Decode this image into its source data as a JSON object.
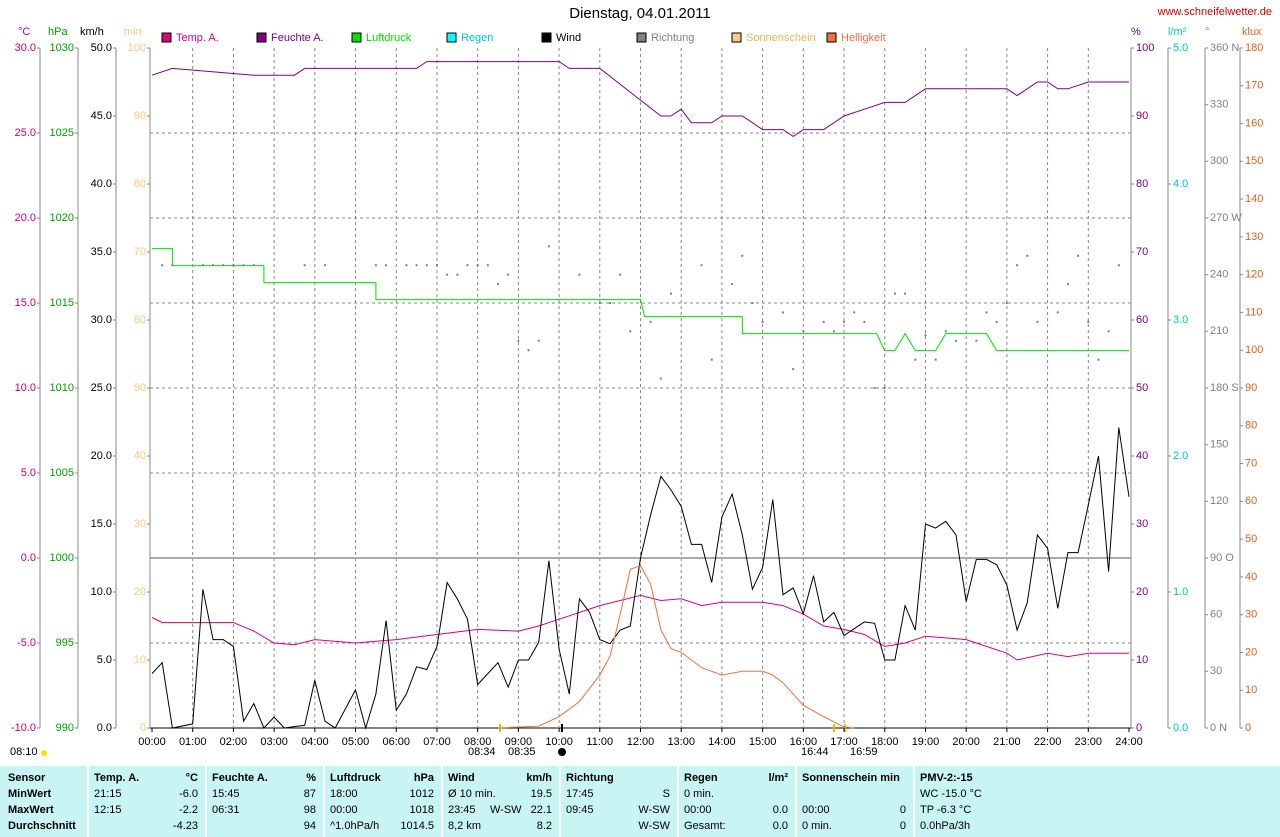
{
  "chart_data": {
    "type": "line",
    "title": "Dienstag, 04.01.2011",
    "source": "www.schneifelwetter.de",
    "xlim": [
      0,
      24
    ],
    "xticks": [
      {
        "value": 0,
        "label": "00:00"
      },
      {
        "value": 1,
        "label": "01:00"
      },
      {
        "value": 2,
        "label": "02:00"
      },
      {
        "value": 3,
        "label": "03:00"
      },
      {
        "value": 4,
        "label": "04:00"
      },
      {
        "value": 5,
        "label": "05:00"
      },
      {
        "value": 6,
        "label": "06:00"
      },
      {
        "value": 7,
        "label": "07:00"
      },
      {
        "value": 8,
        "label": "08:00"
      },
      {
        "value": 9,
        "label": "09:00"
      },
      {
        "value": 10,
        "label": "10:00"
      },
      {
        "value": 11,
        "label": "11:00"
      },
      {
        "value": 12,
        "label": "12:00"
      },
      {
        "value": 13,
        "label": "13:00"
      },
      {
        "value": 14,
        "label": "14:00"
      },
      {
        "value": 15,
        "label": "15:00"
      },
      {
        "value": 16,
        "label": "16:00"
      },
      {
        "value": 17,
        "label": "17:00"
      },
      {
        "value": 18,
        "label": "18:00"
      },
      {
        "value": 19,
        "label": "19:00"
      },
      {
        "value": 20,
        "label": "20:00"
      },
      {
        "value": 21,
        "label": "21:00"
      },
      {
        "value": 22,
        "label": "22:00"
      },
      {
        "value": 23,
        "label": "23:00"
      },
      {
        "value": 24,
        "label": "24:00"
      }
    ],
    "grid": true,
    "axes": [
      {
        "unit": "°C",
        "color": "#d0006f",
        "lim": [
          -10,
          30
        ],
        "ticks": [
          {
            "value": -10,
            "label": "-10.0"
          },
          {
            "value": -5,
            "label": "-5.0"
          },
          {
            "value": 0,
            "label": "0.0"
          },
          {
            "value": 5,
            "label": "5.0"
          },
          {
            "value": 10,
            "label": "10.0"
          },
          {
            "value": 15,
            "label": "15.0"
          },
          {
            "value": 20,
            "label": "20.0"
          },
          {
            "value": 25,
            "label": "25.0"
          },
          {
            "value": 30,
            "label": "30.0"
          }
        ]
      },
      {
        "unit": "hPa",
        "color": "#00a000",
        "lim": [
          990,
          1030
        ],
        "ticks": [
          990,
          995,
          1000,
          1005,
          1010,
          1015,
          1020,
          1025,
          1030
        ]
      },
      {
        "unit": "km/h",
        "color": "#000000",
        "lim": [
          0,
          50
        ],
        "ticks": [
          {
            "value": 0,
            "label": "0.0"
          },
          {
            "value": 5,
            "label": "5.0"
          },
          {
            "value": 10,
            "label": "10.0"
          },
          {
            "value": 15,
            "label": "15.0"
          },
          {
            "value": 20,
            "label": "20.0"
          },
          {
            "value": 25,
            "label": "25.0"
          },
          {
            "value": 30,
            "label": "30.0"
          },
          {
            "value": 35,
            "label": "35.0"
          },
          {
            "value": 40,
            "label": "40.0"
          },
          {
            "value": 45,
            "label": "45.0"
          },
          {
            "value": 50,
            "label": "50.0"
          }
        ]
      },
      {
        "unit": "min",
        "color": "#ffc880",
        "lim": [
          0,
          100
        ],
        "ticks": [
          0,
          10,
          20,
          30,
          40,
          50,
          60,
          70,
          80,
          90,
          100
        ]
      },
      {
        "unit": "%",
        "color": "#800080",
        "lim": [
          0,
          100
        ],
        "ticks": [
          0,
          10,
          20,
          30,
          40,
          50,
          60,
          70,
          80,
          90,
          100
        ]
      },
      {
        "unit": "l/m²",
        "color": "#00c8c8",
        "lim": [
          0,
          5
        ],
        "ticks": [
          {
            "value": 0,
            "label": "0.0"
          },
          {
            "value": 1,
            "label": "1.0"
          },
          {
            "value": 2,
            "label": "2.0"
          },
          {
            "value": 3,
            "label": "3.0"
          },
          {
            "value": 4,
            "label": "4.0"
          },
          {
            "value": 5,
            "label": "5.0"
          }
        ]
      },
      {
        "unit": "°",
        "color": "#808080",
        "lim": [
          0,
          360
        ],
        "ticks": [
          {
            "value": 0,
            "label": "0 N"
          },
          30,
          60,
          {
            "value": 90,
            "label": "90 O"
          },
          120,
          150,
          {
            "value": 180,
            "label": "180 S"
          },
          210,
          240,
          {
            "value": 270,
            "label": "270 W"
          },
          300,
          330,
          {
            "value": 360,
            "label": "360 N"
          }
        ]
      },
      {
        "unit": "klux",
        "color": "#e06020",
        "lim": [
          0,
          180
        ],
        "ticks": [
          0,
          10,
          20,
          30,
          40,
          50,
          60,
          70,
          80,
          90,
          100,
          110,
          120,
          130,
          140,
          150,
          160,
          170,
          180
        ]
      }
    ],
    "series": [
      {
        "name": "Temp. A.",
        "color": "#e0007a",
        "axis": 0,
        "type": "line",
        "x": [
          0,
          0.25,
          2,
          2.5,
          3,
          3.5,
          4,
          5,
          6,
          7,
          8,
          9,
          9.5,
          10,
          11,
          12,
          12.5,
          13,
          13.5,
          14,
          15,
          15.5,
          16,
          16.5,
          17,
          17.5,
          18,
          18.5,
          19,
          19.5,
          20,
          21,
          21.25,
          22,
          22.5,
          23,
          24
        ],
        "values": [
          -3.5,
          -3.8,
          -3.8,
          -4.3,
          -5.0,
          -5.1,
          -4.8,
          -5.0,
          -4.8,
          -4.5,
          -4.2,
          -4.3,
          -4.0,
          -3.6,
          -2.8,
          -2.2,
          -2.5,
          -2.4,
          -2.8,
          -2.6,
          -2.6,
          -2.8,
          -3.3,
          -4.0,
          -4.2,
          -4.5,
          -5.2,
          -5.0,
          -4.6,
          -4.7,
          -4.8,
          -5.6,
          -6.0,
          -5.6,
          -5.8,
          -5.6,
          -5.6
        ]
      },
      {
        "name": "Feuchte A.",
        "color": "#800080",
        "axis": 4,
        "type": "line",
        "x": [
          0,
          0.5,
          2.5,
          3.5,
          3.75,
          6.5,
          6.75,
          10,
          10.25,
          11,
          12.5,
          12.75,
          13,
          13.25,
          13.75,
          14,
          14.5,
          15,
          15.5,
          15.75,
          16,
          16.5,
          17,
          17.5,
          18,
          18.5,
          19,
          21,
          21.25,
          21.75,
          22,
          22.25,
          22.5,
          23,
          24
        ],
        "values": [
          96,
          97,
          96,
          96,
          97,
          97,
          98,
          98,
          97,
          97,
          90,
          90,
          91,
          89,
          89,
          90,
          90,
          88,
          88,
          87,
          88,
          88,
          90,
          91,
          92,
          92,
          94,
          94,
          93,
          95,
          95,
          94,
          94,
          95,
          95
        ]
      },
      {
        "name": "Luftdruck",
        "color": "#00e000",
        "axis": 1,
        "type": "line",
        "x": [
          0,
          0.5,
          0.5,
          2.75,
          2.75,
          5.5,
          5.5,
          12.0,
          12.1,
          14.5,
          14.5,
          17.8,
          18.0,
          18.25,
          18.5,
          18.75,
          19.25,
          19.5,
          20.5,
          20.75,
          24
        ],
        "values": [
          1018.2,
          1018.2,
          1017.2,
          1017.2,
          1016.2,
          1016.2,
          1015.2,
          1015.2,
          1014.2,
          1014.2,
          1013.2,
          1013.2,
          1012.2,
          1012.2,
          1013.2,
          1012.2,
          1012.2,
          1013.2,
          1013.2,
          1012.2,
          1012.2
        ]
      },
      {
        "name": "Regen",
        "color": "#00ffff",
        "axis": 5,
        "type": "line",
        "x": [],
        "values": []
      },
      {
        "name": "Wind",
        "color": "#000000",
        "axis": 2,
        "type": "line",
        "x": [
          0,
          0.25,
          0.5,
          1,
          1.25,
          1.5,
          1.75,
          2,
          2.25,
          2.5,
          2.75,
          3,
          3.25,
          3.75,
          4,
          4.25,
          4.5,
          5,
          5.25,
          5.5,
          5.75,
          6,
          6.25,
          6.5,
          6.75,
          7,
          7.25,
          7.5,
          7.75,
          8,
          8.25,
          8.5,
          8.75,
          9,
          9.25,
          9.5,
          9.75,
          10,
          10.25,
          10.5,
          10.75,
          11,
          11.25,
          11.5,
          11.75,
          12,
          12.25,
          12.5,
          12.75,
          13,
          13.25,
          13.5,
          13.75,
          14,
          14.25,
          14.5,
          14.75,
          15,
          15.25,
          15.5,
          15.75,
          16,
          16.25,
          16.5,
          16.75,
          17,
          17.25,
          17.5,
          17.75,
          18,
          18.25,
          18.5,
          18.75,
          19,
          19.25,
          19.5,
          19.75,
          20,
          20.25,
          20.5,
          20.75,
          21,
          21.25,
          21.5,
          21.75,
          22,
          22.25,
          22.5,
          22.75,
          23,
          23.25,
          23.5,
          23.75,
          24
        ],
        "values": [
          4,
          4.8,
          0,
          0.3,
          10.2,
          6.5,
          6.5,
          6,
          0.5,
          1.8,
          0,
          0.8,
          0,
          0.2,
          3.5,
          0.5,
          0,
          2.8,
          0,
          2.5,
          7.9,
          1.3,
          2.5,
          4.5,
          4.3,
          6,
          10.7,
          9.5,
          8,
          3.2,
          4,
          4.8,
          3,
          5,
          5,
          6.3,
          12.3,
          5.8,
          2.5,
          9.5,
          8.5,
          6.5,
          6.2,
          7.2,
          7.5,
          12.5,
          15.7,
          18.5,
          17.5,
          16.3,
          13.5,
          13.5,
          10.7,
          15.5,
          17.2,
          14.2,
          10.2,
          11.8,
          16.8,
          9.8,
          10.3,
          8.4,
          11.2,
          7.8,
          8.5,
          6.8,
          7.3,
          7.8,
          7.7,
          5,
          5,
          9,
          7.2,
          15,
          14.7,
          15.2,
          14.2,
          9.3,
          12.4,
          12.4,
          12,
          10.5,
          7.2,
          9.2,
          14.2,
          13.2,
          8.8,
          12.9,
          12.9,
          16.4,
          20,
          11.5,
          22.1,
          17
        ]
      },
      {
        "name": "Richtung",
        "color": "#808080",
        "axis": 6,
        "type": "scatter",
        "x": [
          0.25,
          0.5,
          1.25,
          1.5,
          1.75,
          2,
          2.25,
          2.5,
          3.75,
          4.25,
          5.5,
          5.75,
          6.25,
          6.5,
          6.75,
          7,
          7.25,
          7.5,
          7.75,
          8,
          8.25,
          8.5,
          8.75,
          9,
          9.25,
          9.5,
          9.75,
          10.5,
          11,
          11.25,
          11.5,
          11.75,
          12.25,
          12.5,
          12.75,
          13.5,
          13.75,
          14.25,
          14.5,
          14.75,
          15,
          15.5,
          15.75,
          16,
          16.5,
          16.75,
          17,
          17.25,
          17.5,
          17.75,
          18,
          18.25,
          18.5,
          18.75,
          19,
          19.25,
          19.5,
          19.75,
          20.25,
          20.5,
          20.75,
          21,
          21.25,
          21.5,
          21.75,
          22.25,
          22.5,
          22.75,
          23,
          23.25,
          23.5,
          23.75
        ],
        "values": [
          245,
          245,
          245,
          245,
          245,
          245,
          245,
          245,
          245,
          245,
          245,
          245,
          245,
          245,
          245,
          245,
          240,
          240,
          245,
          245,
          245,
          235,
          240,
          205,
          200,
          205,
          255,
          240,
          225,
          225,
          240,
          210,
          215,
          185,
          230,
          245,
          195,
          235,
          250,
          225,
          215,
          220,
          190,
          210,
          215,
          210,
          215,
          220,
          215,
          180,
          180,
          230,
          230,
          195,
          208,
          195,
          210,
          205,
          205,
          220,
          215,
          225,
          245,
          250,
          215,
          220,
          235,
          250,
          215,
          195,
          210,
          245
        ]
      },
      {
        "name": "Sonnenschein",
        "color": "#ffcc88",
        "axis": 3,
        "type": "line",
        "x": [],
        "values": []
      },
      {
        "name": "Helligkeit",
        "color": "#f07040",
        "axis": 7,
        "type": "line",
        "x": [
          8.5,
          9.5,
          10,
          10.5,
          11,
          11.25,
          11.5,
          11.75,
          12,
          12.25,
          12.5,
          12.75,
          13,
          13.5,
          14,
          14.5,
          15,
          15.25,
          15.5,
          16,
          16.5,
          17,
          17.25
        ],
        "values": [
          0,
          0.5,
          3,
          7,
          14,
          19,
          30,
          42,
          43,
          38,
          26,
          21,
          20,
          16,
          14,
          15,
          15,
          14,
          12,
          6,
          3,
          0.3,
          0
        ]
      }
    ],
    "annotations": [
      "08:10",
      "08:34",
      "08:35",
      "16:44",
      "16:59"
    ]
  },
  "table": {
    "row_labels": [
      "Sensor",
      "MinWert",
      "MaxWert",
      "Durchschnitt"
    ],
    "columns": [
      {
        "header": "Temp. A.",
        "unit": "°C",
        "rows": [
          {
            "time": "21:15",
            "value": "-6.0"
          },
          {
            "time": "12:15",
            "value": "-2.2"
          },
          {
            "value": "-4.23"
          }
        ]
      },
      {
        "header": "Feuchte A.",
        "unit": "%",
        "rows": [
          {
            "time": "15:45",
            "value": "87"
          },
          {
            "time": "06:31",
            "value": "98"
          },
          {
            "value": "94"
          }
        ]
      },
      {
        "header": "Luftdruck",
        "unit": "hPa",
        "rows": [
          {
            "time": "18:00",
            "value": "1012"
          },
          {
            "time": "00:00",
            "value": "1018"
          },
          {
            "time": "^1.0hPa/h",
            "value": "1014.5"
          }
        ]
      },
      {
        "header": "Wind",
        "unit": "km/h",
        "rows": [
          {
            "time": "Ø 10 min.",
            "value": "19.5"
          },
          {
            "time": "23:45",
            "middle": "W-SW",
            "value": "22.1"
          },
          {
            "time": "8,2 km",
            "value": "8.2"
          }
        ]
      },
      {
        "header": "Richtung",
        "rows": [
          {
            "time": "17:45",
            "value": "S"
          },
          {
            "time": "09:45",
            "value": "W-SW"
          },
          {
            "value": "W-SW"
          }
        ]
      },
      {
        "header": "Regen",
        "unit": "l/m²",
        "rows": [
          {
            "time": "0 min."
          },
          {
            "time": "00:00",
            "value": "0.0"
          },
          {
            "time": "Gesamt:",
            "value": "0.0"
          }
        ]
      },
      {
        "header": "Sonnenschein min",
        "rows": [
          {},
          {
            "time": "00:00",
            "value": "0"
          },
          {
            "time": "0 min.",
            "value": "0"
          }
        ]
      },
      {
        "header": "PMV-2:-15",
        "rows": [
          {
            "time": "WC -15.0 °C"
          },
          {
            "time": "TP -6.3 °C"
          },
          {
            "time": "0.0hPa/3h"
          }
        ]
      }
    ]
  }
}
